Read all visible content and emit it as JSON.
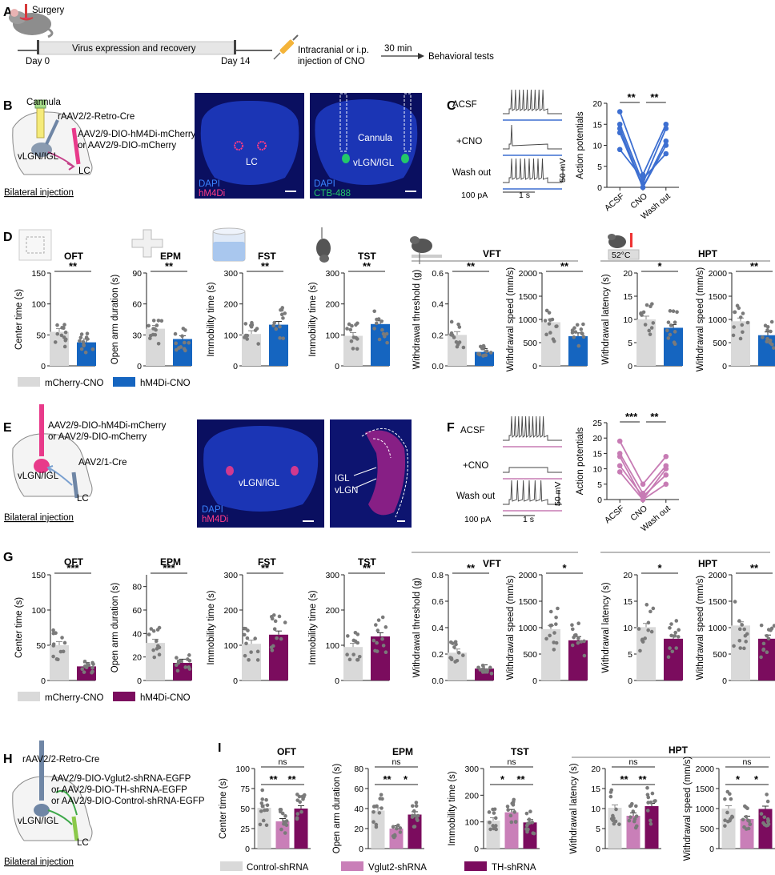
{
  "panels": [
    "A",
    "B",
    "C",
    "D",
    "E",
    "F",
    "G",
    "H",
    "I"
  ],
  "colors": {
    "ctrl": "#d9d9d9",
    "blue": "#1565c0",
    "blueLine": "#3d6fd1",
    "purple": "#7b0c5e",
    "pink": "#c97fb8",
    "lineF": "#c77bb4",
    "dot": "#7a7a7a",
    "micro_bg": "#0a0f60",
    "dapi": "#3a84ff",
    "mcherry": "#ff3b86",
    "ctb": "#23c86a"
  },
  "panelA": {
    "surgery": "Surgery",
    "day0": "Day 0",
    "virus": "Virus expression and recovery",
    "day14": "Day 14",
    "injection_l1": "Intracranial or i.p.",
    "injection_l2": "injection of CNO",
    "wait": "30 min",
    "tests": "Behavioral tests"
  },
  "panelB": {
    "cannula": "Cannula",
    "retro": "rAAV2/2-Retro-Cre",
    "virus1": "AAV2/9-DIO-hM4Di-mCherry",
    "virus2": "or AAV2/9-DIO-mCherry",
    "region1": "vLGN/IGL",
    "region2": "LC",
    "bilateral": "Bilateral injection",
    "img1_lc": "LC",
    "img1_dapi": "DAPI",
    "img1_hm4di": "hM4Di",
    "img2_cannula": "Cannula",
    "img2_vlgn": "vLGN/IGL",
    "img2_dapi": "DAPI",
    "img2_ctb": "CTB-488"
  },
  "panelC": {
    "acsf": "ACSF",
    "cno": "+CNO",
    "wash": "Wash out",
    "current": "100 pA",
    "time": "1 s",
    "voltage": "50 mV",
    "ylabel": "Action potentials",
    "yticks": [
      0,
      5,
      10,
      15,
      20
    ],
    "xcats": [
      "ACSF",
      "CNO",
      "Wash out"
    ],
    "sig": [
      "**",
      "**"
    ]
  },
  "panelD": {
    "titles": {
      "oft": "OFT",
      "epm": "EPM",
      "fst": "FST",
      "tst": "TST",
      "vft": "VFT",
      "hpt": "HPT"
    },
    "temp": "52°C",
    "legend_ctrl": "mCherry-CNO",
    "legend_exp": "hM4Di-CNO"
  },
  "panelE": {
    "virus1": "AAV2/9-DIO-hM4Di-mCherry",
    "virus2": "or AAV2/9-DIO-mCherry",
    "cre": "AAV2/1-Cre",
    "region1": "vLGN/IGL",
    "region2": "LC",
    "bilateral": "Bilateral injection",
    "img1_vlgn": "vLGN/IGL",
    "img1_dapi": "DAPI",
    "img1_hm4di": "hM4Di",
    "img2_igl": "IGL",
    "img2_vlgn": "vLGN"
  },
  "panelF": {
    "acsf": "ACSF",
    "cno": "+CNO",
    "wash": "Wash out",
    "current": "100 pA",
    "time": "1 s",
    "voltage": "50 mV",
    "ylabel": "Action potentials",
    "yticks": [
      0,
      5,
      10,
      15,
      20,
      25
    ],
    "xcats": [
      "ACSF",
      "CNO",
      "Wash out"
    ],
    "sig": [
      "***",
      "**"
    ]
  },
  "panelG": {
    "legend_ctrl": "mCherry-CNO",
    "legend_exp": "hM4Di-CNO"
  },
  "panelH": {
    "retro": "rAAV2/2-Retro-Cre",
    "virus1": "AAV2/9-DIO-Vglut2-shRNA-EGFP",
    "virus2": "or AAV2/9-DIO-TH-shRNA-EGFP",
    "virus3": "or AAV2/9-DIO-Control-shRNA-EGFP",
    "region1": "vLGN/IGL",
    "region2": "LC",
    "bilateral": "Bilateral injection"
  },
  "panelI": {
    "titles": {
      "oft": "OFT",
      "epm": "EPM",
      "tst": "TST",
      "hpt": "HPT"
    },
    "legend": [
      "Control-shRNA",
      "Vglut2-shRNA",
      "TH-shRNA"
    ]
  },
  "chart_data": [
    {
      "id": "C",
      "type": "line",
      "title": "",
      "ylabel": "Action potentials",
      "categories": [
        "ACSF",
        "CNO",
        "Wash out"
      ],
      "ylim": [
        0,
        20
      ],
      "series": [
        {
          "name": "cell1",
          "values": [
            18,
            3,
            15
          ]
        },
        {
          "name": "cell2",
          "values": [
            15,
            1,
            14
          ]
        },
        {
          "name": "cell3",
          "values": [
            14,
            0,
            11
          ]
        },
        {
          "name": "cell4",
          "values": [
            13,
            0,
            10
          ]
        },
        {
          "name": "cell5",
          "values": [
            9,
            2,
            8
          ]
        }
      ]
    },
    {
      "id": "D1",
      "type": "bar",
      "title": "OFT",
      "ylabel": "Center time (s)",
      "ylim": [
        0,
        150
      ],
      "yticks": [
        0,
        50,
        100,
        150
      ],
      "categories": [
        "mCherry-CNO",
        "hM4Di-CNO"
      ],
      "values": [
        55,
        38
      ],
      "sig": "**"
    },
    {
      "id": "D2",
      "type": "bar",
      "title": "EPM",
      "ylabel": "Open arm duration (s)",
      "ylim": [
        0,
        90
      ],
      "yticks": [
        0,
        30,
        60,
        90
      ],
      "categories": [
        "mCherry-CNO",
        "hM4Di-CNO"
      ],
      "values": [
        36,
        26
      ],
      "sig": "**"
    },
    {
      "id": "D3",
      "type": "bar",
      "title": "FST",
      "ylabel": "Immobility time (s)",
      "ylim": [
        0,
        300
      ],
      "yticks": [
        0,
        100,
        200,
        300
      ],
      "categories": [
        "mCherry-CNO",
        "hM4Di-CNO"
      ],
      "values": [
        103,
        133
      ],
      "sig": "**"
    },
    {
      "id": "D4",
      "type": "bar",
      "title": "TST",
      "ylabel": "Immobility time (s)",
      "ylim": [
        0,
        300
      ],
      "yticks": [
        0,
        100,
        200,
        300
      ],
      "categories": [
        "mCherry-CNO",
        "hM4Di-CNO"
      ],
      "values": [
        97,
        135
      ],
      "sig": "**"
    },
    {
      "id": "D5",
      "type": "bar",
      "title": "VFT",
      "ylabel": "Withdrawal threshold (g)",
      "ylim": [
        0,
        0.6
      ],
      "yticks": [
        0.0,
        0.2,
        0.4,
        0.6
      ],
      "categories": [
        "mCherry-CNO",
        "hM4Di-CNO"
      ],
      "values": [
        0.2,
        0.09
      ],
      "sig": "**"
    },
    {
      "id": "D6",
      "type": "bar",
      "title": "VFT",
      "ylabel": "Withdrawal speed (mm/s)",
      "ylim": [
        0,
        2000
      ],
      "yticks": [
        0,
        500,
        1000,
        1500,
        2000
      ],
      "categories": [
        "mCherry-CNO",
        "hM4Di-CNO"
      ],
      "values": [
        940,
        640
      ],
      "sig": "**"
    },
    {
      "id": "D7",
      "type": "bar",
      "title": "HPT",
      "ylabel": "Withdrawal latency (s)",
      "ylim": [
        0,
        20
      ],
      "yticks": [
        0,
        5,
        10,
        15,
        20
      ],
      "categories": [
        "mCherry-CNO",
        "hM4Di-CNO"
      ],
      "values": [
        10,
        8.2
      ],
      "sig": "*"
    },
    {
      "id": "D8",
      "type": "bar",
      "title": "HPT",
      "ylabel": "Withdrawal speed (mm/s)",
      "ylim": [
        0,
        2000
      ],
      "yticks": [
        0,
        500,
        1000,
        1500,
        2000
      ],
      "categories": [
        "mCherry-CNO",
        "hM4Di-CNO"
      ],
      "values": [
        960,
        660
      ],
      "sig": "**"
    },
    {
      "id": "G1",
      "type": "bar",
      "title": "OFT",
      "ylabel": "Center time (s)",
      "ylim": [
        0,
        150
      ],
      "yticks": [
        0,
        50,
        100,
        150
      ],
      "categories": [
        "mCherry-CNO",
        "hM4Di-CNO"
      ],
      "values": [
        50,
        20
      ],
      "sig": "***"
    },
    {
      "id": "G2",
      "type": "bar",
      "title": "EPM",
      "ylabel": "Open arm duration (s)",
      "ylim": [
        0,
        90
      ],
      "yticks": [
        0,
        20,
        40,
        60,
        80
      ],
      "categories": [
        "mCherry-CNO",
        "hM4Di-CNO"
      ],
      "values": [
        32,
        15
      ],
      "sig": "***"
    },
    {
      "id": "G3",
      "type": "bar",
      "title": "FST",
      "ylabel": "Immobility time (s)",
      "ylim": [
        0,
        300
      ],
      "yticks": [
        0,
        100,
        200,
        300
      ],
      "categories": [
        "mCherry-CNO",
        "hM4Di-CNO"
      ],
      "values": [
        104,
        130
      ],
      "sig": "**"
    },
    {
      "id": "G4",
      "type": "bar",
      "title": "TST",
      "ylabel": "Immobility time (s)",
      "ylim": [
        0,
        300
      ],
      "yticks": [
        0,
        100,
        200,
        300
      ],
      "categories": [
        "mCherry-CNO",
        "hM4Di-CNO"
      ],
      "values": [
        95,
        125
      ],
      "sig": "**"
    },
    {
      "id": "G5",
      "type": "bar",
      "title": "VFT",
      "ylabel": "Withdrawal threshold (g)",
      "ylim": [
        0,
        0.8
      ],
      "yticks": [
        0.0,
        0.2,
        0.4,
        0.6,
        0.8
      ],
      "categories": [
        "mCherry-CNO",
        "hM4Di-CNO"
      ],
      "values": [
        0.21,
        0.09
      ],
      "sig": "**"
    },
    {
      "id": "G6",
      "type": "bar",
      "title": "VFT",
      "ylabel": "Withdrawal speed (mm/s)",
      "ylim": [
        0,
        2000
      ],
      "yticks": [
        0,
        500,
        1000,
        1500,
        2000
      ],
      "categories": [
        "mCherry-CNO",
        "hM4Di-CNO"
      ],
      "values": [
        970,
        760
      ],
      "sig": "*"
    },
    {
      "id": "G7",
      "type": "bar",
      "title": "HPT",
      "ylabel": "Withdrawal latency (s)",
      "ylim": [
        0,
        20
      ],
      "yticks": [
        0,
        5,
        10,
        15,
        20
      ],
      "categories": [
        "mCherry-CNO",
        "hM4Di-CNO"
      ],
      "values": [
        10.1,
        7.9
      ],
      "sig": "*"
    },
    {
      "id": "G8",
      "type": "bar",
      "title": "HPT",
      "ylabel": "Withdrawal speed (mm/s)",
      "ylim": [
        0,
        2000
      ],
      "yticks": [
        0,
        500,
        1000,
        1500,
        2000
      ],
      "categories": [
        "mCherry-CNO",
        "hM4Di-CNO"
      ],
      "values": [
        1040,
        790
      ],
      "sig": "**"
    },
    {
      "id": "I1",
      "type": "bar",
      "title": "OFT",
      "ylabel": "Center time (s)",
      "ylim": [
        0,
        100
      ],
      "yticks": [
        0,
        25,
        50,
        75,
        100
      ],
      "categories": [
        "Control-shRNA",
        "Vglut2-shRNA",
        "TH-shRNA"
      ],
      "values": [
        51,
        34,
        50
      ],
      "sig": [
        "**",
        "**",
        "ns"
      ]
    },
    {
      "id": "I2",
      "type": "bar",
      "title": "EPM",
      "ylabel": "Open arm duration (s)",
      "ylim": [
        0,
        80
      ],
      "yticks": [
        0,
        20,
        40,
        60,
        80
      ],
      "categories": [
        "Control-shRNA",
        "Vglut2-shRNA",
        "TH-shRNA"
      ],
      "values": [
        38,
        20,
        34
      ],
      "sig": [
        "**",
        "*",
        "ns"
      ]
    },
    {
      "id": "I3",
      "type": "bar",
      "title": "TST",
      "ylabel": "Immobility time (s)",
      "ylim": [
        0,
        300
      ],
      "yticks": [
        0,
        100,
        200,
        300
      ],
      "categories": [
        "Control-shRNA",
        "Vglut2-shRNA",
        "TH-shRNA"
      ],
      "values": [
        105,
        136,
        98
      ],
      "sig": [
        "*",
        "**",
        "ns"
      ]
    },
    {
      "id": "I4",
      "type": "bar",
      "title": "HPT",
      "ylabel": "Withdrawal latency (s)",
      "ylim": [
        0,
        20
      ],
      "yticks": [
        0,
        5,
        10,
        15,
        20
      ],
      "categories": [
        "Control-shRNA",
        "Vglut2-shRNA",
        "TH-shRNA"
      ],
      "values": [
        10.2,
        8.2,
        10.6
      ],
      "sig": [
        "**",
        "**",
        "ns"
      ]
    },
    {
      "id": "I5",
      "type": "bar",
      "title": "HPT",
      "ylabel": "Withdrawal speed (mm/s)",
      "ylim": [
        0,
        2000
      ],
      "yticks": [
        0,
        500,
        1000,
        1500,
        2000
      ],
      "categories": [
        "Control-shRNA",
        "Vglut2-shRNA",
        "TH-shRNA"
      ],
      "values": [
        1000,
        740,
        990
      ],
      "sig": [
        "*",
        "*",
        "ns"
      ]
    },
    {
      "id": "F",
      "type": "line",
      "title": "",
      "ylabel": "Action potentials",
      "categories": [
        "ACSF",
        "CNO",
        "Wash out"
      ],
      "ylim": [
        0,
        25
      ],
      "series": [
        {
          "name": "cell1",
          "values": [
            19,
            5,
            14
          ]
        },
        {
          "name": "cell2",
          "values": [
            15,
            2,
            11
          ]
        },
        {
          "name": "cell3",
          "values": [
            14,
            0,
            10
          ]
        },
        {
          "name": "cell4",
          "values": [
            11,
            1,
            8
          ]
        },
        {
          "name": "cell5",
          "values": [
            9,
            0,
            5
          ]
        }
      ]
    }
  ]
}
